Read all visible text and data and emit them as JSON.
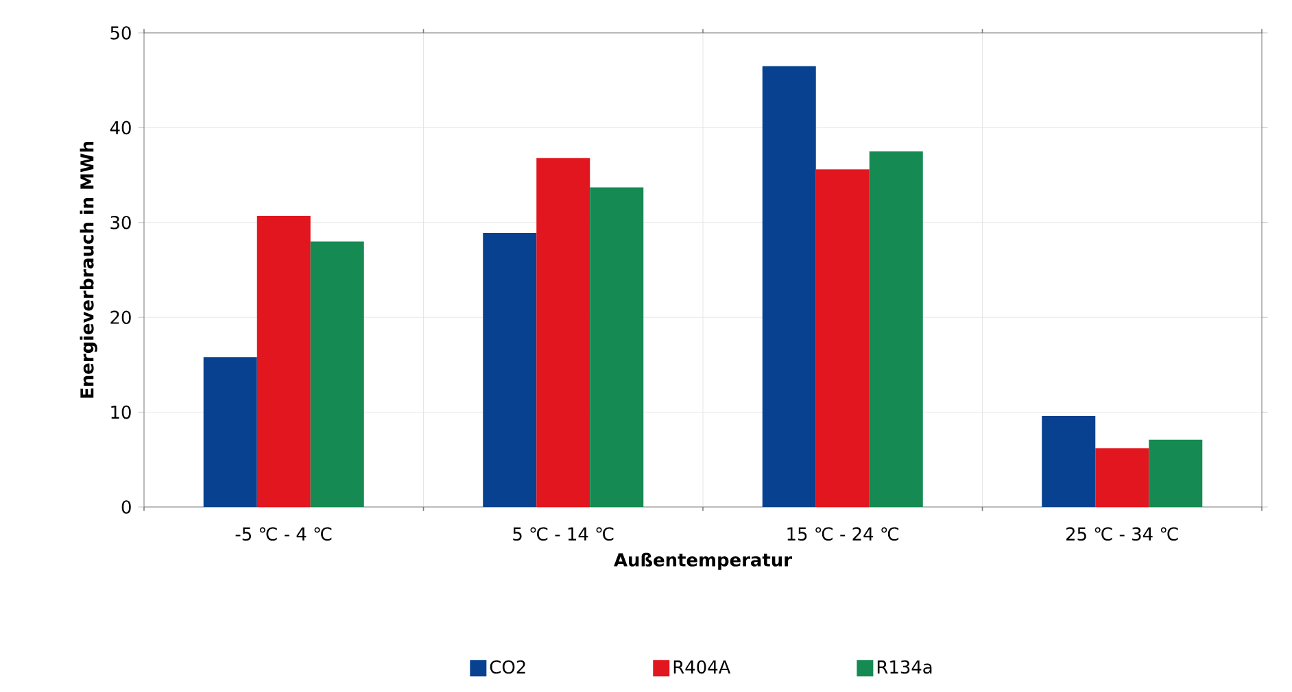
{
  "chart_data": {
    "type": "bar",
    "xlabel": "Außentemperatur",
    "ylabel": "Energieverbrauch in MWh",
    "categories": [
      "-5 ℃ - 4 ℃",
      "5 ℃ - 14 ℃",
      "15 ℃ - 24 ℃",
      "25 ℃ - 34 ℃"
    ],
    "series": [
      {
        "name": "CO2",
        "color": "#07418f",
        "values": [
          15.8,
          28.9,
          46.5,
          9.6
        ]
      },
      {
        "name": "R404A",
        "color": "#e2161f",
        "values": [
          30.7,
          36.8,
          35.6,
          6.2
        ]
      },
      {
        "name": "R134a",
        "color": "#158a52",
        "values": [
          28.0,
          33.7,
          37.5,
          7.1
        ]
      }
    ],
    "ylim": [
      0,
      50
    ],
    "yticks": [
      0,
      10,
      20,
      30,
      40,
      50
    ],
    "grid": true,
    "legend": "bottom"
  }
}
